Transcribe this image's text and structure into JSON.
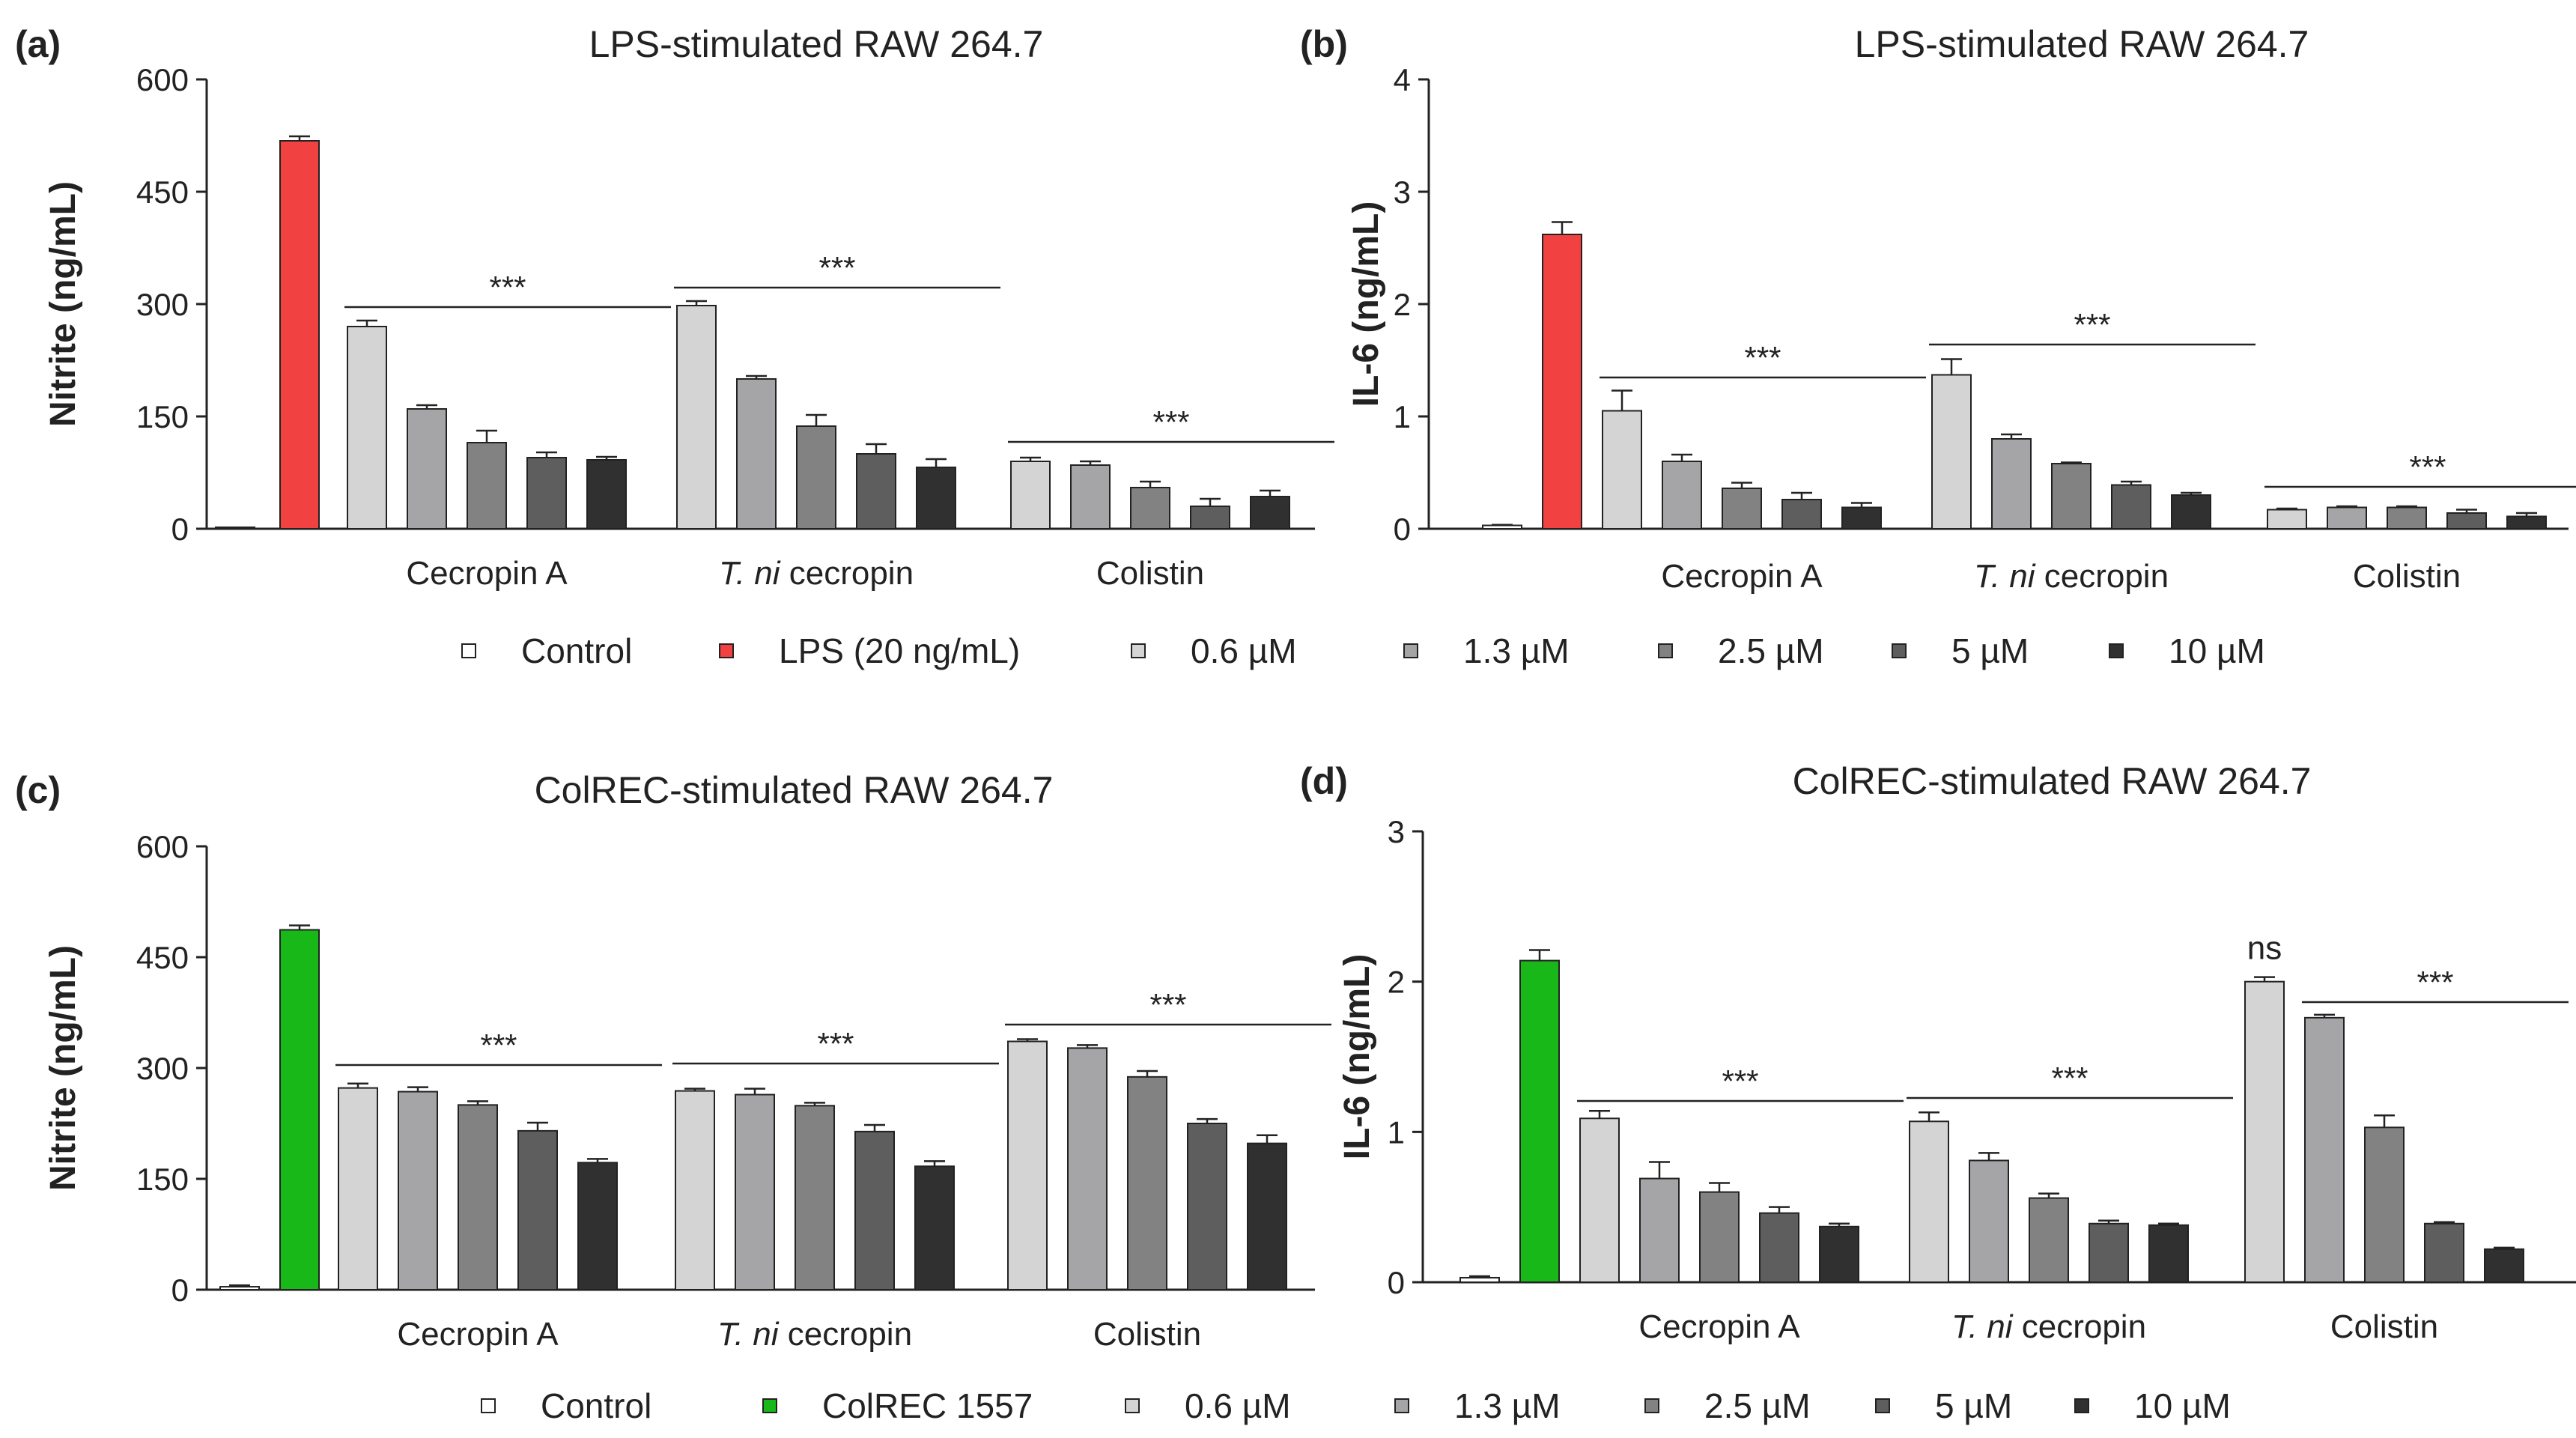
{
  "legend_top": {
    "items": [
      {
        "label": "Control",
        "color": "#ffffff"
      },
      {
        "label": "LPS (20 ng/mL)",
        "color": "#f24141"
      },
      {
        "label": "0.6 µM",
        "color": "#d4d4d4"
      },
      {
        "label": "1.3 µM",
        "color": "#a5a5a8"
      },
      {
        "label": "2.5 µM",
        "color": "#828282"
      },
      {
        "label": "5 µM",
        "color": "#5e5e5e"
      },
      {
        "label": "10 µM",
        "color": "#303030"
      }
    ]
  },
  "legend_bottom": {
    "items": [
      {
        "label": "Control",
        "color": "#ffffff"
      },
      {
        "label": "ColREC 1557",
        "color": "#18b818"
      },
      {
        "label": "0.6 µM",
        "color": "#d4d4d4"
      },
      {
        "label": "1.3 µM",
        "color": "#a5a5a8"
      },
      {
        "label": "2.5 µM",
        "color": "#828282"
      },
      {
        "label": "5 µM",
        "color": "#5e5e5e"
      },
      {
        "label": "10 µM",
        "color": "#303030"
      }
    ]
  },
  "chart_data": [
    {
      "panel_label": "(a)",
      "type": "bar",
      "title": "LPS-stimulated RAW 264.7",
      "ylabel": "Nitrite (ng/mL)",
      "ylim": [
        0,
        600
      ],
      "yticks": [
        "0",
        "150",
        "300",
        "450",
        "600"
      ],
      "controls": [
        {
          "name": "Control",
          "value": 0,
          "err": 0,
          "color": "#ffffff"
        },
        {
          "name": "LPS (20 ng/mL)",
          "value": 518,
          "err": 6,
          "color": "#f24141"
        }
      ],
      "groups": [
        {
          "name_plain": "Cecropin A",
          "values": [
            270,
            160,
            115,
            95,
            92
          ],
          "errors": [
            8,
            5,
            16,
            7,
            4
          ],
          "sig": "***"
        },
        {
          "name_italic": "T. ni",
          "name_plain": " cecropin",
          "values": [
            298,
            200,
            137,
            100,
            82
          ],
          "errors": [
            6,
            4,
            15,
            13,
            11
          ],
          "sig": "***"
        },
        {
          "name_plain": "Colistin",
          "values": [
            90,
            85,
            55,
            30,
            43
          ],
          "errors": [
            5,
            5,
            8,
            10,
            8
          ],
          "sig": "***"
        }
      ]
    },
    {
      "panel_label": "(b)",
      "type": "bar",
      "title": "LPS-stimulated RAW 264.7",
      "ylabel": "IL-6 (ng/mL)",
      "ylim": [
        0,
        4
      ],
      "yticks": [
        "0",
        "1",
        "2",
        "3",
        "4"
      ],
      "controls": [
        {
          "name": "Control",
          "value": 0.03,
          "err": 0.005,
          "color": "#ffffff"
        },
        {
          "name": "LPS (20 ng/mL)",
          "value": 2.62,
          "err": 0.11,
          "color": "#f24141"
        }
      ],
      "groups": [
        {
          "name_plain": "Cecropin A",
          "values": [
            1.05,
            0.6,
            0.36,
            0.26,
            0.19
          ],
          "errors": [
            0.18,
            0.06,
            0.05,
            0.06,
            0.04
          ],
          "sig": "***"
        },
        {
          "name_italic": "T. ni",
          "name_plain": " cecropin",
          "values": [
            1.37,
            0.8,
            0.58,
            0.39,
            0.3
          ],
          "errors": [
            0.14,
            0.04,
            0.01,
            0.03,
            0.02
          ],
          "sig": "***"
        },
        {
          "name_plain": "Colistin",
          "values": [
            0.17,
            0.19,
            0.19,
            0.14,
            0.11
          ],
          "errors": [
            0.01,
            0.01,
            0.01,
            0.03,
            0.03
          ],
          "sig": "***"
        }
      ]
    },
    {
      "panel_label": "(c)",
      "type": "bar",
      "title": "ColREC-stimulated RAW 264.7",
      "ylabel": "Nitrite (ng/mL)",
      "ylim": [
        0,
        600
      ],
      "yticks": [
        "0",
        "150",
        "300",
        "450",
        "600"
      ],
      "controls": [
        {
          "name": "Control",
          "value": 4,
          "err": 2,
          "color": "#ffffff"
        },
        {
          "name": "ColREC 1557",
          "value": 487,
          "err": 6,
          "color": "#18b818"
        }
      ],
      "groups": [
        {
          "name_plain": "Cecropin A",
          "values": [
            273,
            268,
            250,
            215,
            172
          ],
          "errors": [
            6,
            6,
            5,
            11,
            5
          ],
          "sig": "***"
        },
        {
          "name_italic": "T. ni",
          "name_plain": " cecropin",
          "values": [
            269,
            264,
            249,
            214,
            167
          ],
          "errors": [
            3,
            8,
            4,
            9,
            7
          ],
          "sig": "***"
        },
        {
          "name_plain": "Colistin",
          "values": [
            336,
            327,
            288,
            225,
            198
          ],
          "errors": [
            3,
            4,
            8,
            6,
            11
          ],
          "sig": "***"
        }
      ]
    },
    {
      "panel_label": "(d)",
      "type": "bar",
      "title": "ColREC-stimulated RAW 264.7",
      "ylabel": "IL-6 (ng/mL)",
      "ylim": [
        0,
        3
      ],
      "yticks": [
        "0",
        "1",
        "2",
        "3"
      ],
      "controls": [
        {
          "name": "Control",
          "value": 0.03,
          "err": 0.01,
          "color": "#ffffff"
        },
        {
          "name": "ColREC 1557",
          "value": 2.14,
          "err": 0.07,
          "color": "#18b818"
        }
      ],
      "groups": [
        {
          "name_plain": "Cecropin A",
          "values": [
            1.09,
            0.69,
            0.6,
            0.46,
            0.37
          ],
          "errors": [
            0.05,
            0.11,
            0.06,
            0.04,
            0.02
          ],
          "sig": "***"
        },
        {
          "name_italic": "T. ni",
          "name_plain": " cecropin",
          "values": [
            1.07,
            0.81,
            0.56,
            0.39,
            0.38
          ],
          "errors": [
            0.06,
            0.05,
            0.03,
            0.02,
            0.01
          ],
          "sig": "***"
        },
        {
          "name_plain": "Colistin",
          "values": [
            2.0,
            1.76,
            1.03,
            0.39,
            0.22
          ],
          "errors": [
            0.03,
            0.02,
            0.08,
            0.01,
            0.01
          ],
          "sig": "***",
          "ns_label": "ns"
        }
      ]
    }
  ]
}
